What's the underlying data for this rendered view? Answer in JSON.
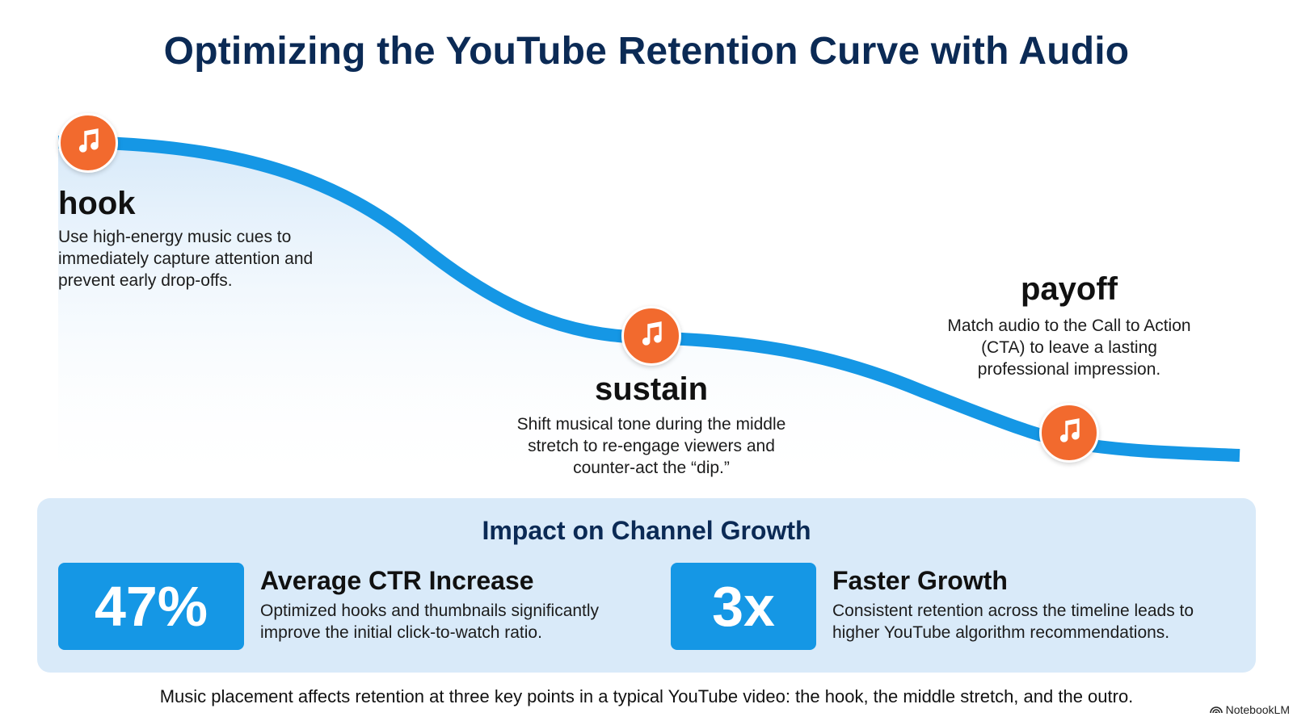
{
  "title": "Optimizing the YouTube Retention Curve with Audio",
  "colors": {
    "curve": "#1597e5",
    "badge": "#f26a2e",
    "title": "#0b2a55",
    "panel": "#d9eaf9",
    "stat_box": "#1597e5"
  },
  "stages": [
    {
      "title": "hook",
      "description": [
        "Use high-energy music cues to",
        "immediately capture attention and",
        "prevent early drop-offs."
      ],
      "icon": "music-note-icon"
    },
    {
      "title": "sustain",
      "description": [
        "Shift musical tone during the middle",
        "stretch to re-engage viewers and",
        "counter-act the “dip.”"
      ],
      "icon": "music-note-icon"
    },
    {
      "title": "payoff",
      "description": [
        "Match audio to the Call to Action",
        "(CTA) to leave a lasting",
        "professional impression."
      ],
      "icon": "music-note-icon"
    }
  ],
  "impact": {
    "title": "Impact on Channel Growth",
    "stats": [
      {
        "value": "47%",
        "heading": "Average CTR Increase",
        "description": [
          "Optimized hooks and thumbnails significantly",
          "improve the initial click-to-watch ratio."
        ]
      },
      {
        "value": "3x",
        "heading": "Faster Growth",
        "description": [
          "Consistent retention across the timeline leads to",
          "higher YouTube algorithm recommendations."
        ]
      }
    ]
  },
  "caption": "Music placement affects retention at three key points in a typical YouTube video: the hook, the middle stretch, and the outro.",
  "brand": "NotebookLM"
}
